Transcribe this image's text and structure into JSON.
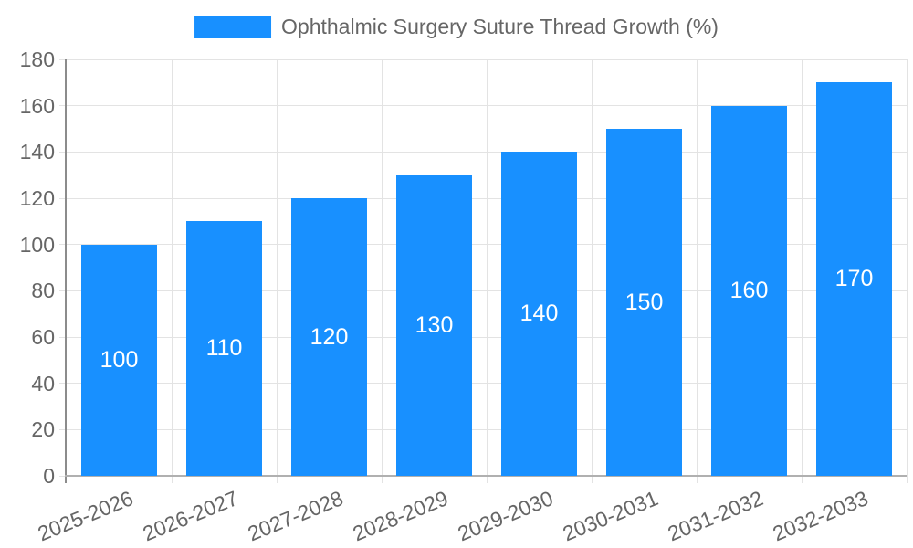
{
  "chart_data": {
    "type": "bar",
    "title": "Ophthalmic Surgery Suture Thread Growth (%)",
    "categories": [
      "2025-2026",
      "2026-2027",
      "2027-2028",
      "2028-2029",
      "2029-2030",
      "2030-2031",
      "2031-2032",
      "2032-2033"
    ],
    "values": [
      100,
      110,
      120,
      130,
      140,
      150,
      160,
      170
    ],
    "xlabel": "",
    "ylabel": "",
    "ylim": [
      0,
      180
    ],
    "ytick_step": 20,
    "yticks": [
      0,
      20,
      40,
      60,
      80,
      100,
      120,
      140,
      160,
      180
    ],
    "grid": true,
    "legend_position": "top-center",
    "value_labels": "inside-center",
    "colors": {
      "bar": "#1890ff",
      "bar_label": "#ffffff",
      "axis_text": "#666666",
      "grid_line": "#e3e3e3",
      "y_axis_line": "#8c8c8c",
      "x_axis_line": "#b0b0b0",
      "background": "#ffffff"
    }
  }
}
